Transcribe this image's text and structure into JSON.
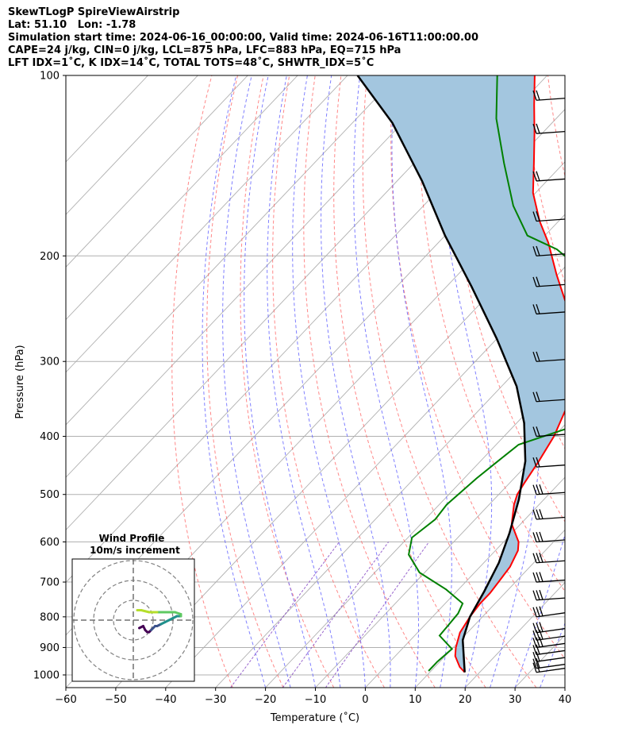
{
  "header": {
    "line1": "SkewTLogP SpireViewAirstrip",
    "line2": "Lat: 51.10   Lon: -1.78",
    "line3": "Simulation start time: 2024-06-16_00:00:00, Valid time: 2024-06-16T11:00:00.00",
    "line4": "CAPE=24 j/kg, CIN=0 j/kg, LCL=875 hPa, LFC=883 hPa, EQ=715 hPa",
    "line5": "LFT IDX=1˚C, K IDX=14˚C, TOTAL TOTS=48˚C, SHWTR_IDX=5˚C"
  },
  "chart_data": [
    {
      "type": "line",
      "subtype": "skew-t log-p",
      "xlabel": "Temperature (˚C)",
      "ylabel": "Pressure (hPa)",
      "xlim": [
        -60,
        40
      ],
      "ylim": [
        1050,
        100
      ],
      "yscale": "log",
      "grid": true,
      "x_ticks": [
        -60,
        -50,
        -40,
        -30,
        -20,
        -10,
        0,
        10,
        20,
        30,
        40
      ],
      "x_tick_labels": [
        "−60",
        "−50",
        "−40",
        "−30",
        "−20",
        "−10",
        "0",
        "10",
        "20",
        "30",
        "40"
      ],
      "y_ticks": [
        1000,
        900,
        800,
        700,
        600,
        500,
        400,
        300,
        200,
        100
      ],
      "y_tick_labels": [
        "1000",
        "900",
        "800",
        "700",
        "600",
        "500",
        "400",
        "300",
        "200",
        "100"
      ],
      "series": [
        {
          "role": "temperature",
          "color": "#ff0000",
          "points": [
            [
              17.0,
              990
            ],
            [
              15,
              970
            ],
            [
              12,
              930
            ],
            [
              10.5,
              900
            ],
            [
              8.5,
              850
            ],
            [
              7.5,
              800
            ],
            [
              7.0,
              760
            ],
            [
              7.0,
              730
            ],
            [
              6.6,
              700
            ],
            [
              6.0,
              660
            ],
            [
              4.5,
              620
            ],
            [
              3.0,
              600
            ],
            [
              -1.8,
              560
            ],
            [
              -5.0,
              520
            ],
            [
              -6.3,
              500
            ],
            [
              -7.0,
              480
            ],
            [
              -8.3,
              440
            ],
            [
              -10.0,
              400
            ],
            [
              -12.8,
              360
            ],
            [
              -16.3,
              330
            ],
            [
              -20.8,
              300
            ],
            [
              -25.0,
              275
            ],
            [
              -31.5,
              245
            ],
            [
              -40.2,
              215
            ],
            [
              -48.0,
              190
            ],
            [
              -53.8,
              175
            ],
            [
              -60.5,
              157
            ],
            [
              -66.0,
              140
            ],
            [
              -71.5,
              125
            ],
            [
              -77.0,
              112
            ],
            [
              -82.5,
              100
            ]
          ]
        },
        {
          "role": "dewpoint",
          "color": "#008000",
          "points": [
            [
              9.5,
              985
            ],
            [
              9.5,
              950
            ],
            [
              10,
              905
            ],
            [
              5.0,
              860
            ],
            [
              4.8,
              830
            ],
            [
              4.5,
              790
            ],
            [
              3.5,
              760
            ],
            [
              -2.5,
              720
            ],
            [
              -11.0,
              675
            ],
            [
              -16.6,
              630
            ],
            [
              -19.2,
              590
            ],
            [
              -18.0,
              550
            ],
            [
              -18.5,
              520
            ],
            [
              -17.5,
              470
            ],
            [
              -16.5,
              440
            ],
            [
              -15.5,
              413
            ],
            [
              -8.0,
              385
            ],
            [
              -7.8,
              360
            ],
            [
              -13.0,
              330
            ],
            [
              -17.0,
              310
            ],
            [
              -20.0,
              285
            ],
            [
              -24.0,
              253
            ],
            [
              -29.0,
              230
            ],
            [
              -34.0,
              215
            ],
            [
              -45.0,
              195
            ],
            [
              -53.5,
              185
            ],
            [
              -62.0,
              165
            ],
            [
              -72.0,
              140
            ],
            [
              -82.0,
              118
            ],
            [
              -90.0,
              100
            ]
          ]
        },
        {
          "role": "parcel",
          "color": "#000000",
          "points": [
            [
              17.0,
              990
            ],
            [
              10.5,
              875
            ],
            [
              7.5,
              800
            ],
            [
              5.5,
              725
            ],
            [
              3.0,
              650
            ],
            [
              -0.5,
              580
            ],
            [
              -5.0,
              510
            ],
            [
              -11.0,
              440
            ],
            [
              -18.5,
              380
            ],
            [
              -27.0,
              330
            ],
            [
              -40.0,
              275
            ],
            [
              -55.0,
              225
            ],
            [
              -70.0,
              185
            ],
            [
              -85.0,
              150
            ],
            [
              -102.0,
              120
            ],
            [
              -118.0,
              100
            ]
          ]
        }
      ],
      "cape_shading_color": "#a3c6df",
      "reference_line_colors": {
        "isotherms": "#b0b0b0",
        "dry_adiabats": "#ff6060",
        "moist_adiabats": "#6060ff",
        "mixing_ratio": "#8040c0"
      },
      "wind_barbs_pressure": [
        990,
        975,
        950,
        925,
        900,
        875,
        850,
        800,
        750,
        700,
        650,
        600,
        550,
        500,
        450,
        400,
        350,
        300,
        250,
        225,
        200,
        175,
        150,
        125,
        110
      ]
    },
    {
      "type": "scatter",
      "subtype": "hodograph",
      "title": "Wind Profile",
      "subtitle": "10m/s increment",
      "rings": [
        10,
        20,
        30
      ],
      "u": [
        3,
        5,
        6,
        7,
        8,
        9,
        10,
        11,
        12,
        14,
        16,
        18,
        20,
        22,
        24,
        24,
        21,
        16,
        12,
        8,
        4,
        2
      ],
      "v": [
        -4,
        -3,
        -5,
        -6,
        -6,
        -5,
        -4,
        -3,
        -3,
        -2,
        -1,
        0,
        1,
        2,
        2,
        3,
        4,
        4,
        4,
        4,
        5,
        5
      ]
    }
  ]
}
